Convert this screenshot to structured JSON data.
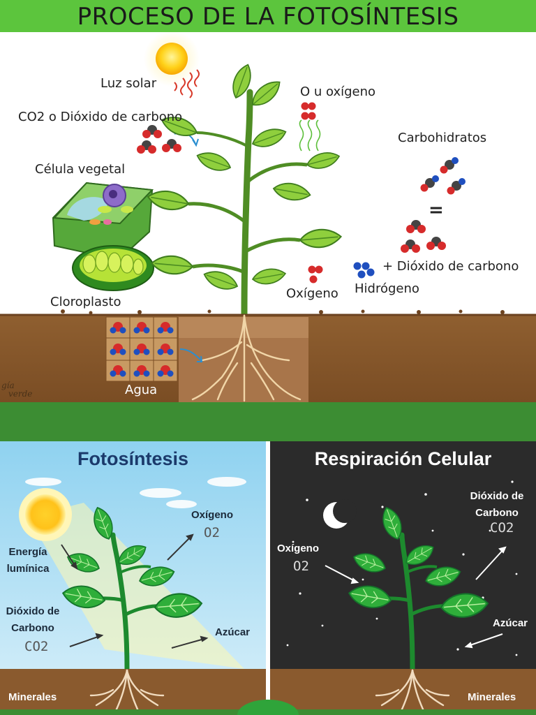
{
  "header": {
    "title": "PROCESO DE LA FOTOSÍNTESIS"
  },
  "top_diagram": {
    "labels": {
      "sunlight": "Luz solar",
      "co2": "CO2 o Dióxido de carbono",
      "oxygen_top": "O u oxígeno",
      "carbohydrates": "Carbohidratos",
      "plant_cell": "Célula vegetal",
      "chloroplast": "Cloroplasto",
      "oxygen": "Oxígeno",
      "hydrogen": "Hidrógeno",
      "co2_plus": "+ Dióxido de carbono",
      "equals": "=",
      "water": "Agua"
    },
    "watermark": [
      "gía",
      "verde"
    ]
  },
  "photosynthesis_panel": {
    "title": "Fotosíntesis",
    "light_energy": [
      "Energía",
      "lumínica"
    ],
    "co2": [
      "Dióxido de",
      "Carbono"
    ],
    "co2_formula": "CO2",
    "oxygen": "Oxígeno",
    "oxygen_formula": "O2",
    "sugar": "Azúcar",
    "minerals": "Minerales"
  },
  "respiration_panel": {
    "title": "Respiración Celular",
    "oxygen": "Oxígeno",
    "oxygen_formula": "O2",
    "co2": [
      "Dióxido de",
      "Carbono"
    ],
    "co2_formula": "CO2",
    "sugar": "Azúcar",
    "minerals": "Minerales"
  },
  "colors": {
    "header_green": "#5cc53d",
    "band_green": "#3c8d33",
    "leaf_green": "#7cc23a",
    "soil_brown": "#8a5a2e",
    "day_sky": "#9bd7f2",
    "night_sky": "#2b2b2b",
    "title_blue": "#1b3a6b"
  }
}
